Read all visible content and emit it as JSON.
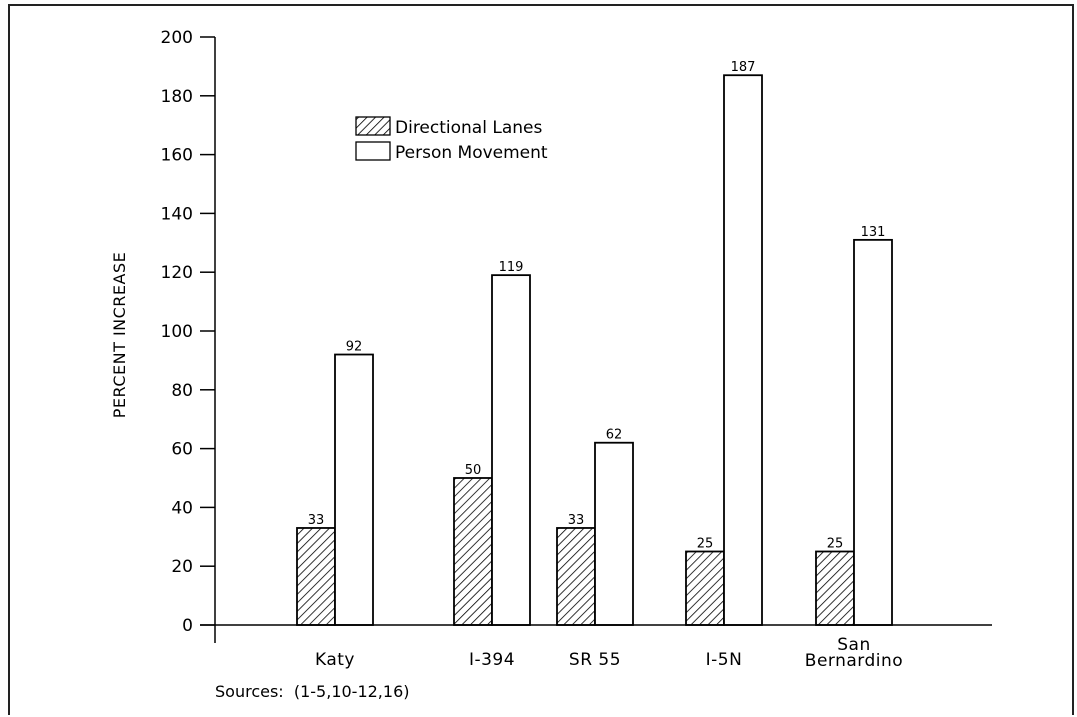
{
  "chart_data": {
    "type": "bar",
    "title": "",
    "ylabel": "PERCENT INCREASE",
    "xlabel": "",
    "ylim": [
      0,
      200
    ],
    "yticks": [
      0,
      20,
      40,
      60,
      80,
      100,
      120,
      140,
      160,
      180,
      200
    ],
    "categories": [
      [
        "Katy"
      ],
      [
        "I-394"
      ],
      [
        "SR 55"
      ],
      [
        "I-5N"
      ],
      [
        "San",
        "Bernardino"
      ]
    ],
    "series": [
      {
        "name": "Directional Lanes",
        "pattern": "hatched",
        "values": [
          33,
          50,
          33,
          25,
          25
        ],
        "labels": [
          "33",
          "50",
          "33",
          "25",
          "25"
        ]
      },
      {
        "name": "Person Movement",
        "pattern": "open",
        "values": [
          92,
          119,
          62,
          187,
          131
        ],
        "labels": [
          "92",
          "119",
          "62",
          "187",
          "131"
        ]
      }
    ],
    "legend_position": "top-left",
    "grid": false,
    "source_note": "Sources:  (1-5,10-12,16)"
  }
}
